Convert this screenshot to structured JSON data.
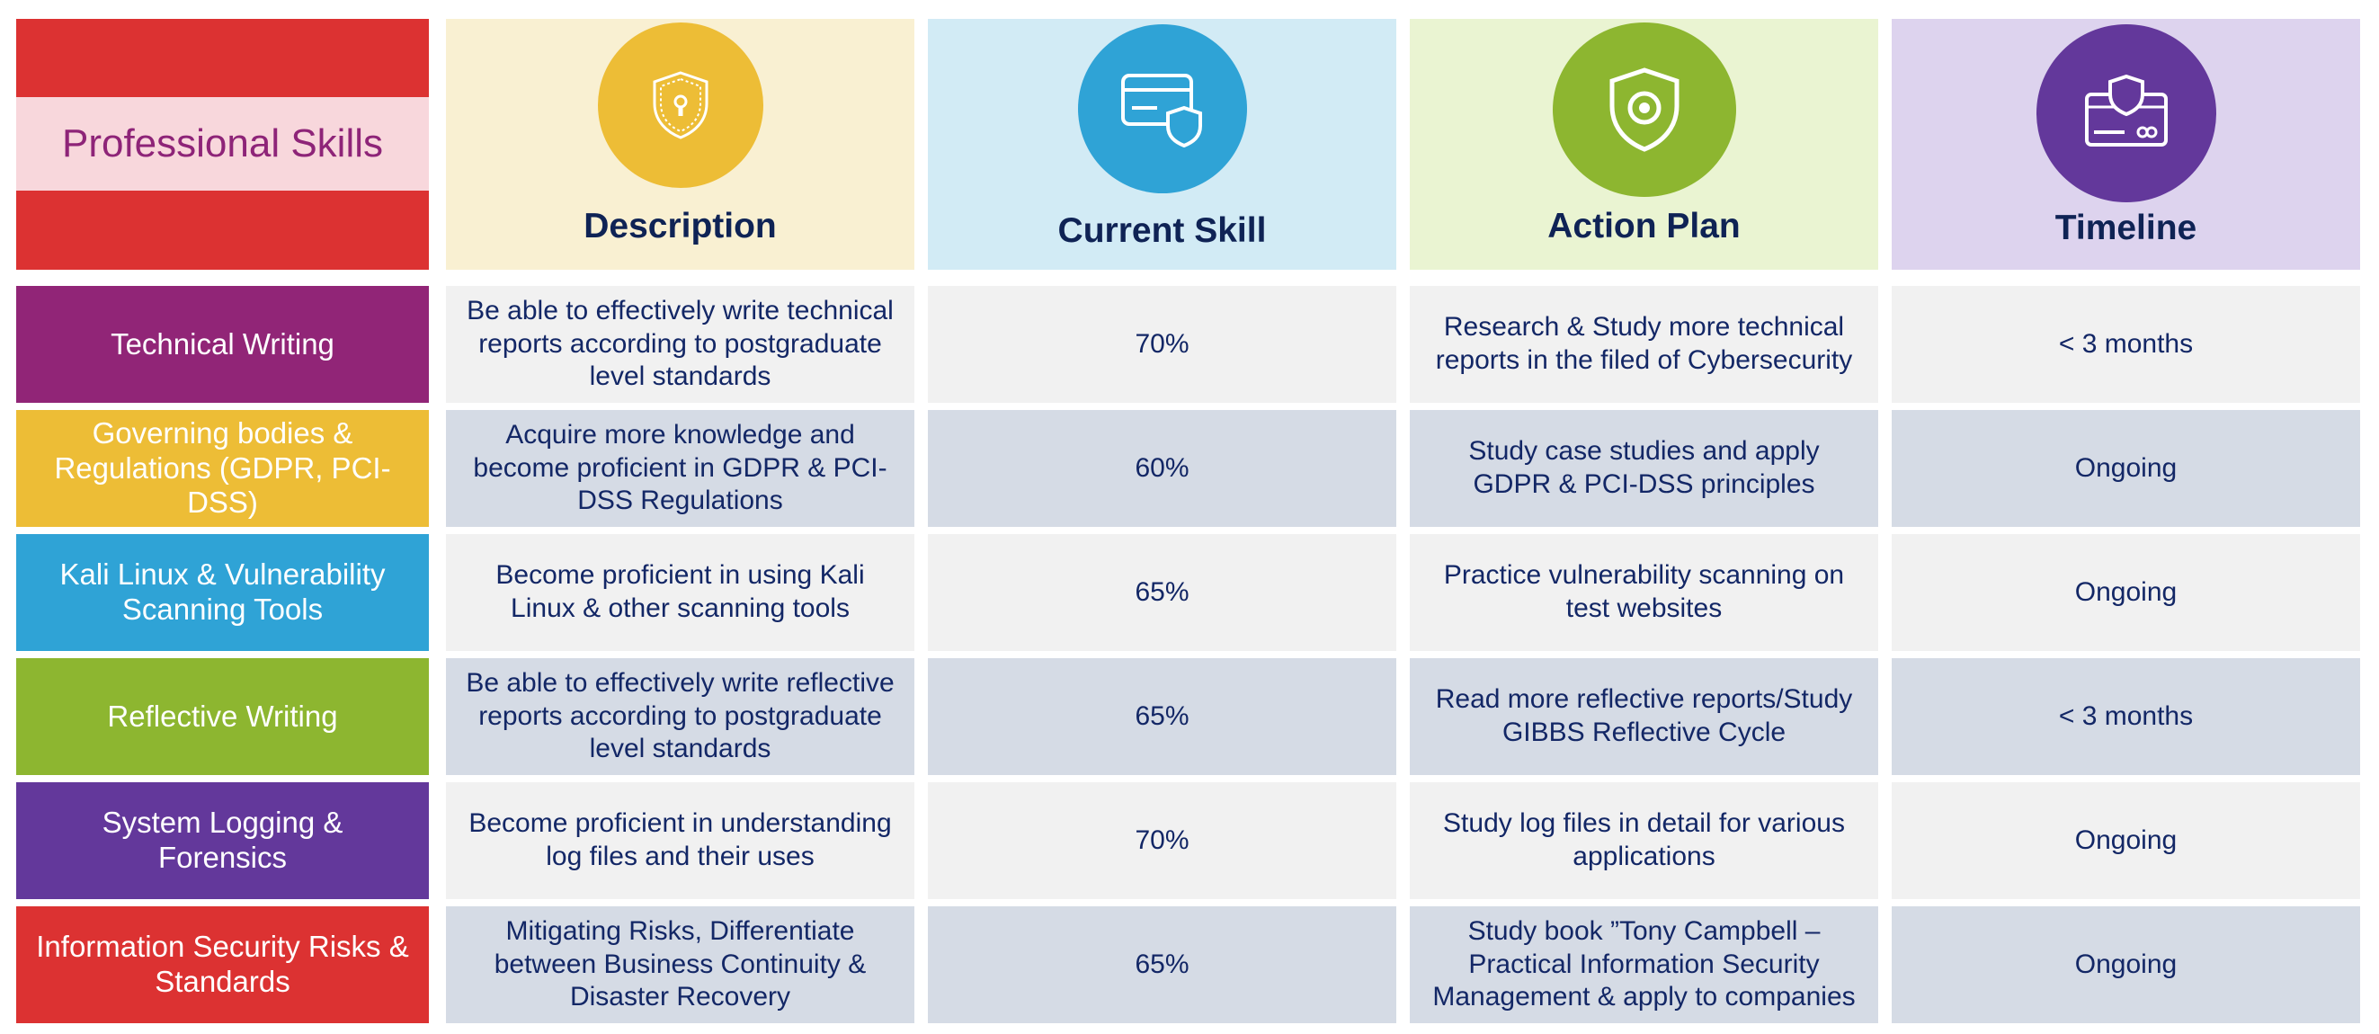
{
  "title": "Professional Skills",
  "columns": [
    {
      "label": "Description",
      "icon": "shield-lock-icon",
      "bg": "#f9f0d2",
      "circle": "#edbd36"
    },
    {
      "label": "Current Skill",
      "icon": "card-shield-icon",
      "bg": "#d2ebf5",
      "circle": "#2fa3d6"
    },
    {
      "label": "Action Plan",
      "icon": "shield-eye-icon",
      "bg": "#eaf4d2",
      "circle": "#8db630"
    },
    {
      "label": "Timeline",
      "icon": "shield-card-icon",
      "bg": "#ddd3ee",
      "circle": "#63389b"
    }
  ],
  "rows": [
    {
      "skill": "Technical Writing",
      "color": "#912577",
      "description": "Be able to effectively write technical reports according to postgraduate level standards",
      "current": "70%",
      "action": "Research & Study more technical reports in the filed of Cybersecurity",
      "timeline": "< 3 months"
    },
    {
      "skill": "Governing bodies & Regulations (GDPR, PCI-DSS)",
      "color": "#edbd36",
      "description": "Acquire more knowledge and become proficient in GDPR & PCI-DSS Regulations",
      "current": "60%",
      "action": "Study case studies and apply GDPR & PCI-DSS principles",
      "timeline": "Ongoing"
    },
    {
      "skill": "Kali Linux & Vulnerability Scanning Tools",
      "color": "#2fa3d6",
      "description": "Become proficient in using Kali Linux & other scanning tools",
      "current": "65%",
      "action": "Practice vulnerability scanning on test websites",
      "timeline": "Ongoing"
    },
    {
      "skill": "Reflective Writing",
      "color": "#8db630",
      "description": "Be able to effectively write reflective reports according to postgraduate level standards",
      "current": "65%",
      "action": "Read more reflective reports/Study GIBBS Reflective Cycle",
      "timeline": "< 3 months"
    },
    {
      "skill": "System Logging & Forensics",
      "color": "#63389b",
      "description": "Become proficient in understanding log files and their uses",
      "current": "70%",
      "action": "Study log files in detail for various applications",
      "timeline": "Ongoing"
    },
    {
      "skill": "Information Security Risks & Standards",
      "color": "#dc3232",
      "description": "Mitigating Risks, Differentiate between Business Continuity & Disaster Recovery",
      "current": "65%",
      "action": "Study book ”Tony Campbell – Practical Information Security Management & apply to companies",
      "timeline": "Ongoing"
    }
  ]
}
